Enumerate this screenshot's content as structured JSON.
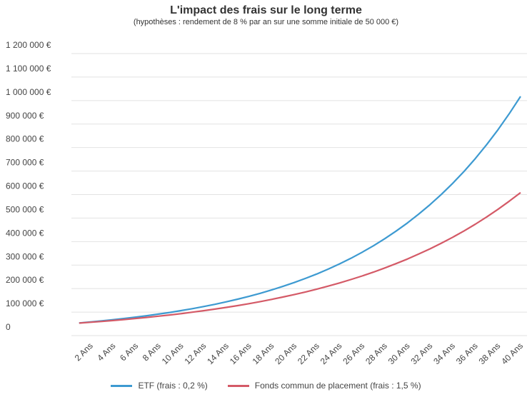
{
  "colors": {
    "etf": "#3d9ad1",
    "fonds": "#d45a67",
    "grid": "#e2e2e2"
  },
  "chart_data": {
    "type": "line",
    "title": "L'impact des frais sur le long terme",
    "subtitle": "(hypothèses : rendement de 8 % par an sur une somme initiale de 50 000 €)",
    "ylim": [
      0,
      1200000
    ],
    "y_ticks": [
      "0",
      "100 000 €",
      "200 000 €",
      "300 000 €",
      "400 000 €",
      "500 000 €",
      "600 000 €",
      "700 000 €",
      "800 000 €",
      "900 000 €",
      "1 000 000 €",
      "1 100 000 €",
      "1 200 000 €"
    ],
    "x": [
      1,
      2,
      3,
      4,
      5,
      6,
      7,
      8,
      9,
      10,
      11,
      12,
      13,
      14,
      15,
      16,
      17,
      18,
      19,
      20,
      21,
      22,
      23,
      24,
      25,
      26,
      27,
      28,
      29,
      30,
      31,
      32,
      33,
      34,
      35,
      36,
      37,
      38,
      39,
      40
    ],
    "x_tick_labels": [
      "2 Ans",
      "4 Ans",
      "6 Ans",
      "8 Ans",
      "10 Ans",
      "12 Ans",
      "14 Ans",
      "16 Ans",
      "18 Ans",
      "20 Ans",
      "22 Ans",
      "24 Ans",
      "26 Ans",
      "28 Ans",
      "30 Ans",
      "32 Ans",
      "34 Ans",
      "36 Ans",
      "38 Ans",
      "40 Ans"
    ],
    "series": [
      {
        "name": "ETF (frais : 0,2 %)",
        "color": "#3d9ad1",
        "values": [
          53900,
          58100,
          62700,
          67600,
          72900,
          78600,
          84700,
          91400,
          98500,
          106200,
          114500,
          123500,
          133200,
          143600,
          154800,
          166900,
          180000,
          194000,
          209200,
          225600,
          243300,
          262300,
          282800,
          305000,
          328800,
          354600,
          382300,
          412200,
          444400,
          479200,
          516700,
          557100,
          600700,
          647700,
          698300,
          753000,
          811900,
          875400,
          943800,
          1017700
        ]
      },
      {
        "name": "Fonds commun de placement (frais : 1,5 %)",
        "color": "#d45a67",
        "values": [
          53200,
          56700,
          60300,
          64200,
          68400,
          72800,
          77500,
          82500,
          87800,
          93400,
          99500,
          105900,
          112700,
          119900,
          127700,
          135900,
          144700,
          154000,
          163900,
          174500,
          185700,
          197700,
          210400,
          224000,
          238400,
          253800,
          270200,
          287600,
          306100,
          325800,
          346800,
          369200,
          393000,
          418300,
          445300,
          474000,
          504500,
          537100,
          571700,
          608500
        ]
      }
    ],
    "legend": "bottom"
  }
}
